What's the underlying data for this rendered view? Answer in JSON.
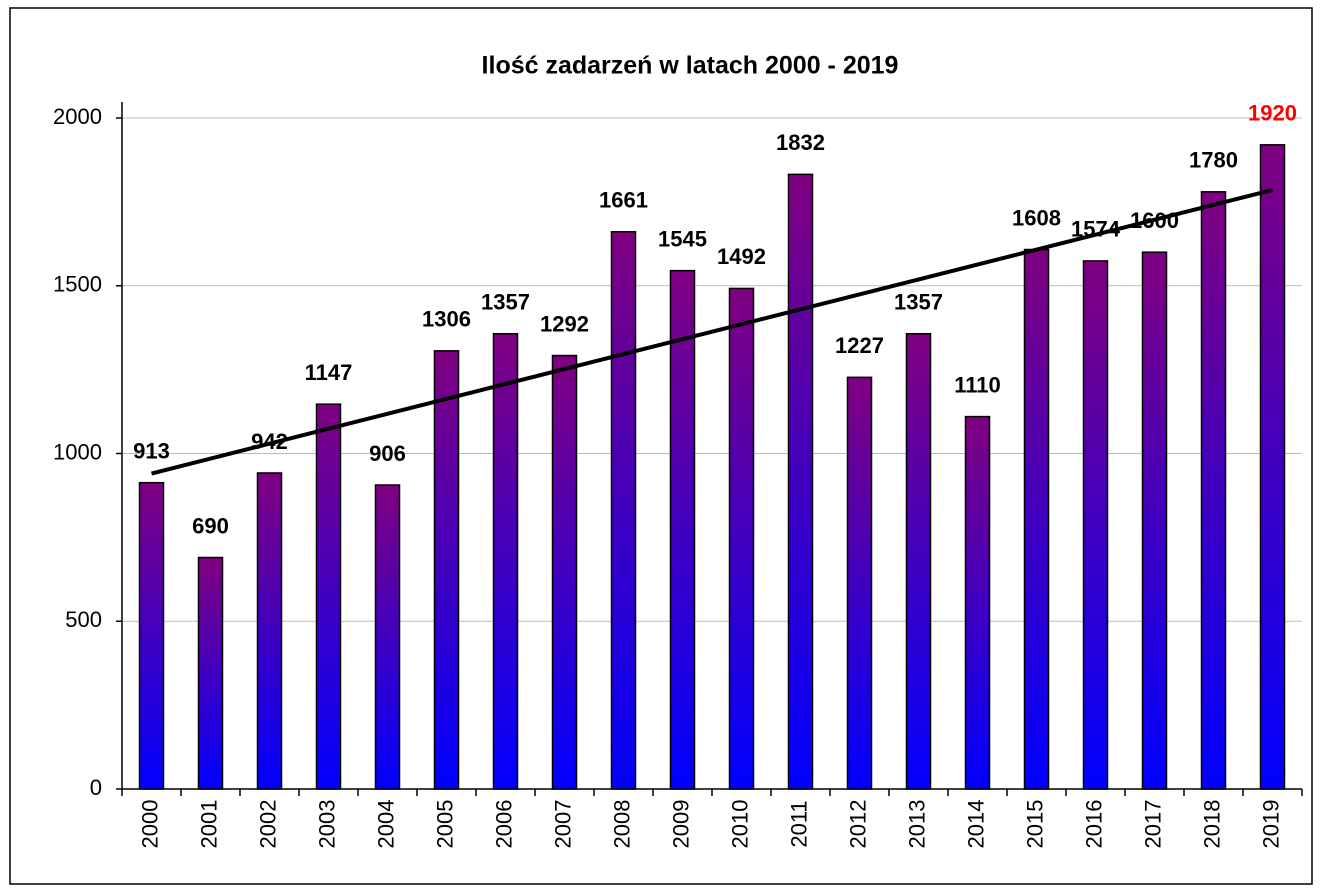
{
  "chart_data": {
    "type": "bar",
    "title": "Ilość zadarzeń w latach 2000 - 2019",
    "categories": [
      "2000",
      "2001",
      "2002",
      "2003",
      "2004",
      "2005",
      "2006",
      "2007",
      "2008",
      "2009",
      "2010",
      "2011",
      "2012",
      "2013",
      "2014",
      "2015",
      "2016",
      "2017",
      "2018",
      "2019"
    ],
    "values": [
      913,
      690,
      942,
      1147,
      906,
      1306,
      1357,
      1292,
      1661,
      1545,
      1492,
      1832,
      1227,
      1357,
      1110,
      1608,
      1574,
      1600,
      1780,
      1920
    ],
    "color_top": "#800080",
    "color_bottom": "#0000ff",
    "label_color": "#000000",
    "highlight": {
      "index": 19,
      "color": "#ff0000"
    },
    "trendline": true,
    "trendline_color": "#000000",
    "ylim": [
      0,
      2000
    ],
    "yticks": [
      0,
      500,
      1000,
      1500,
      2000
    ],
    "grid": true
  }
}
